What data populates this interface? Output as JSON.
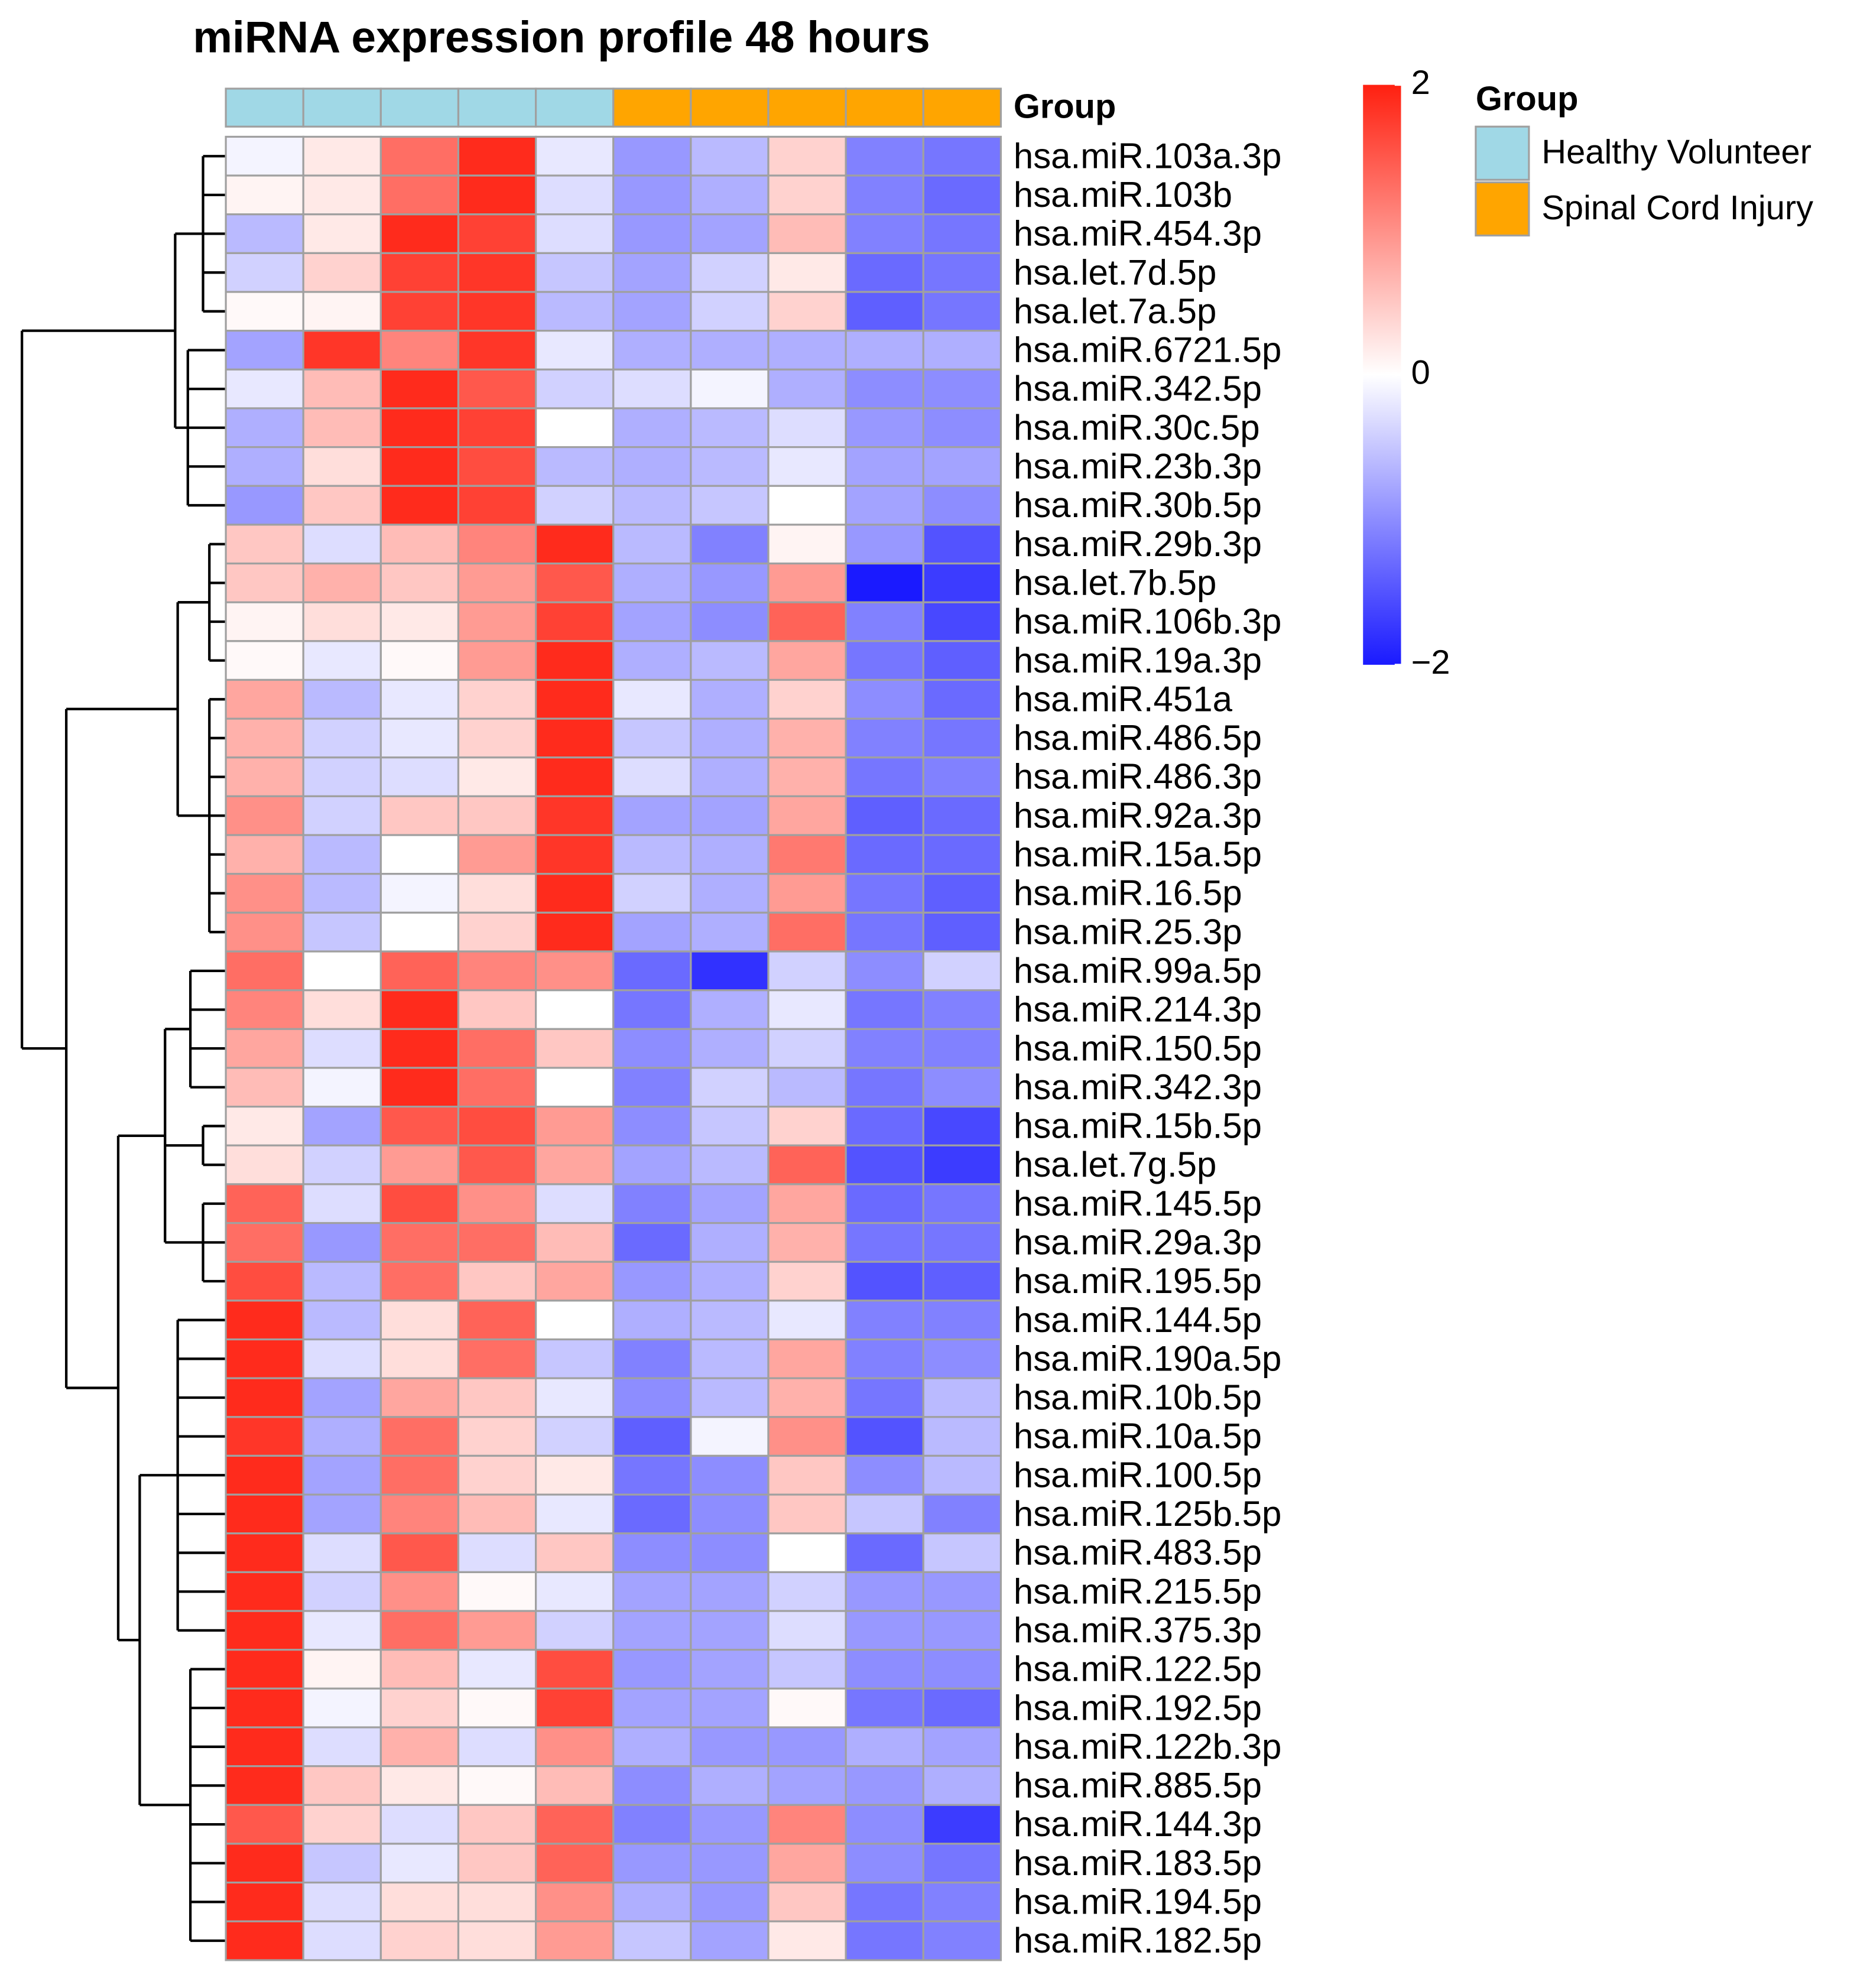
{
  "chart_data": {
    "type": "heatmap",
    "title": "miRNA expression profile 48 hours",
    "rows": [
      "hsa.miR.103a.3p",
      "hsa.miR.103b",
      "hsa.miR.454.3p",
      "hsa.let.7d.5p",
      "hsa.let.7a.5p",
      "hsa.miR.6721.5p",
      "hsa.miR.342.5p",
      "hsa.miR.30c.5p",
      "hsa.miR.23b.3p",
      "hsa.miR.30b.5p",
      "hsa.miR.29b.3p",
      "hsa.let.7b.5p",
      "hsa.miR.106b.3p",
      "hsa.miR.19a.3p",
      "hsa.miR.451a",
      "hsa.miR.486.5p",
      "hsa.miR.486.3p",
      "hsa.miR.92a.3p",
      "hsa.miR.15a.5p",
      "hsa.miR.16.5p",
      "hsa.miR.25.3p",
      "hsa.miR.99a.5p",
      "hsa.miR.214.3p",
      "hsa.miR.150.5p",
      "hsa.miR.342.3p",
      "hsa.miR.15b.5p",
      "hsa.let.7g.5p",
      "hsa.miR.145.5p",
      "hsa.miR.29a.3p",
      "hsa.miR.195.5p",
      "hsa.miR.144.5p",
      "hsa.miR.190a.5p",
      "hsa.miR.10b.5p",
      "hsa.miR.10a.5p",
      "hsa.miR.100.5p",
      "hsa.miR.125b.5p",
      "hsa.miR.483.5p",
      "hsa.miR.215.5p",
      "hsa.miR.375.3p",
      "hsa.miR.122.5p",
      "hsa.miR.192.5p",
      "hsa.miR.122b.3p",
      "hsa.miR.885.5p",
      "hsa.miR.144.3p",
      "hsa.miR.183.5p",
      "hsa.miR.194.5p",
      "hsa.miR.182.5p"
    ],
    "values": [
      [
        -0.1,
        0.2,
        1.3,
        1.9,
        -0.2,
        -0.9,
        -0.6,
        0.4,
        -1.1,
        -1.2
      ],
      [
        0.1,
        0.2,
        1.3,
        1.9,
        -0.3,
        -0.9,
        -0.7,
        0.4,
        -1.1,
        -1.3
      ],
      [
        -0.6,
        0.2,
        1.9,
        1.7,
        -0.3,
        -0.9,
        -0.8,
        0.6,
        -1.1,
        -1.2
      ],
      [
        -0.4,
        0.4,
        1.7,
        1.8,
        -0.5,
        -0.8,
        -0.4,
        0.2,
        -1.3,
        -1.2
      ],
      [
        0.05,
        0.1,
        1.7,
        1.8,
        -0.6,
        -0.8,
        -0.4,
        0.4,
        -1.4,
        -1.2
      ],
      [
        -0.8,
        1.8,
        1.1,
        1.8,
        -0.2,
        -0.7,
        -0.7,
        -0.7,
        -0.7,
        -0.7
      ],
      [
        -0.2,
        0.6,
        1.9,
        1.5,
        -0.4,
        -0.3,
        -0.1,
        -0.7,
        -1.0,
        -1.0
      ],
      [
        -0.7,
        0.6,
        1.9,
        1.7,
        0.0,
        -0.7,
        -0.6,
        -0.3,
        -0.9,
        -1.0
      ],
      [
        -0.7,
        0.3,
        1.9,
        1.6,
        -0.6,
        -0.7,
        -0.6,
        -0.2,
        -0.8,
        -0.8
      ],
      [
        -0.9,
        0.5,
        1.9,
        1.7,
        -0.4,
        -0.6,
        -0.5,
        0.0,
        -0.8,
        -1.0
      ],
      [
        0.5,
        -0.3,
        0.6,
        1.1,
        1.9,
        -0.6,
        -1.1,
        0.1,
        -0.9,
        -1.5
      ],
      [
        0.5,
        0.7,
        0.5,
        0.9,
        1.5,
        -0.7,
        -0.9,
        0.9,
        -2.0,
        -1.7
      ],
      [
        0.1,
        0.3,
        0.2,
        0.9,
        1.7,
        -0.8,
        -1.0,
        1.4,
        -1.1,
        -1.6
      ],
      [
        0.05,
        -0.2,
        0.05,
        0.9,
        1.9,
        -0.7,
        -0.6,
        0.8,
        -1.2,
        -1.4
      ],
      [
        0.8,
        -0.6,
        -0.2,
        0.4,
        1.9,
        -0.2,
        -0.7,
        0.4,
        -1.0,
        -1.3
      ],
      [
        0.7,
        -0.4,
        -0.2,
        0.4,
        1.9,
        -0.5,
        -0.7,
        0.7,
        -1.1,
        -1.2
      ],
      [
        0.7,
        -0.4,
        -0.3,
        0.2,
        1.9,
        -0.3,
        -0.7,
        0.7,
        -1.2,
        -1.1
      ],
      [
        1.0,
        -0.4,
        0.5,
        0.5,
        1.8,
        -0.8,
        -0.8,
        0.8,
        -1.4,
        -1.3
      ],
      [
        0.7,
        -0.6,
        0.0,
        0.9,
        1.8,
        -0.6,
        -0.7,
        1.2,
        -1.3,
        -1.3
      ],
      [
        1.0,
        -0.6,
        -0.1,
        0.3,
        1.9,
        -0.4,
        -0.7,
        0.9,
        -1.2,
        -1.4
      ],
      [
        1.0,
        -0.5,
        0.0,
        0.4,
        1.9,
        -0.8,
        -0.7,
        1.3,
        -1.2,
        -1.4
      ],
      [
        1.3,
        0.0,
        1.4,
        1.1,
        1.0,
        -1.3,
        -1.8,
        -0.4,
        -1.0,
        -0.4
      ],
      [
        1.1,
        0.3,
        1.9,
        0.5,
        0.0,
        -1.2,
        -0.7,
        -0.2,
        -1.2,
        -1.1
      ],
      [
        0.8,
        -0.3,
        1.9,
        1.3,
        0.5,
        -1.0,
        -0.7,
        -0.4,
        -1.1,
        -1.1
      ],
      [
        0.6,
        -0.1,
        1.9,
        1.3,
        0.0,
        -1.1,
        -0.4,
        -0.6,
        -1.2,
        -1.0
      ],
      [
        0.2,
        -0.8,
        1.5,
        1.6,
        0.9,
        -1.0,
        -0.5,
        0.4,
        -1.3,
        -1.6
      ],
      [
        0.3,
        -0.4,
        0.9,
        1.5,
        0.8,
        -0.8,
        -0.6,
        1.4,
        -1.5,
        -1.7
      ],
      [
        1.4,
        -0.3,
        1.6,
        1.0,
        -0.3,
        -1.1,
        -0.8,
        0.8,
        -1.3,
        -1.2
      ],
      [
        1.3,
        -0.9,
        1.3,
        1.3,
        0.6,
        -1.3,
        -0.7,
        0.7,
        -1.2,
        -1.2
      ],
      [
        1.6,
        -0.6,
        1.3,
        0.5,
        0.8,
        -0.9,
        -0.7,
        0.4,
        -1.5,
        -1.4
      ],
      [
        1.9,
        -0.6,
        0.3,
        1.4,
        0.0,
        -0.7,
        -0.6,
        -0.2,
        -1.1,
        -1.1
      ],
      [
        1.9,
        -0.3,
        0.3,
        1.3,
        -0.5,
        -1.1,
        -0.6,
        0.8,
        -1.1,
        -1.0
      ],
      [
        1.9,
        -0.8,
        0.8,
        0.5,
        -0.2,
        -1.0,
        -0.6,
        0.7,
        -1.2,
        -0.6
      ],
      [
        1.8,
        -0.7,
        1.3,
        0.4,
        -0.4,
        -1.4,
        -0.1,
        1.0,
        -1.5,
        -0.6
      ],
      [
        1.9,
        -0.8,
        1.3,
        0.4,
        0.2,
        -1.2,
        -1.0,
        0.5,
        -1.0,
        -0.6
      ],
      [
        1.9,
        -0.8,
        1.1,
        0.6,
        -0.2,
        -1.3,
        -1.0,
        0.5,
        -0.5,
        -1.1
      ],
      [
        1.9,
        -0.3,
        1.5,
        -0.3,
        0.5,
        -1.0,
        -1.0,
        0.0,
        -1.3,
        -0.5
      ],
      [
        1.9,
        -0.4,
        1.0,
        0.05,
        -0.2,
        -0.8,
        -0.8,
        -0.4,
        -0.9,
        -0.9
      ],
      [
        1.9,
        -0.2,
        1.3,
        0.9,
        -0.4,
        -0.8,
        -0.8,
        -0.3,
        -0.9,
        -0.9
      ],
      [
        1.9,
        0.1,
        0.6,
        -0.2,
        1.6,
        -0.9,
        -0.8,
        -0.5,
        -1.0,
        -1.0
      ],
      [
        1.9,
        -0.1,
        0.4,
        0.05,
        1.7,
        -0.8,
        -0.8,
        0.05,
        -1.2,
        -1.3
      ],
      [
        1.9,
        -0.3,
        0.7,
        -0.3,
        1.0,
        -0.7,
        -0.9,
        -0.9,
        -0.7,
        -0.8
      ],
      [
        1.9,
        0.5,
        0.2,
        0.05,
        0.6,
        -1.0,
        -0.7,
        -0.8,
        -0.9,
        -0.7
      ],
      [
        1.5,
        0.4,
        -0.3,
        0.5,
        1.4,
        -1.1,
        -0.9,
        1.1,
        -1.0,
        -1.7
      ],
      [
        1.9,
        -0.5,
        -0.2,
        0.5,
        1.4,
        -0.9,
        -0.9,
        0.8,
        -1.0,
        -1.2
      ],
      [
        1.9,
        -0.3,
        0.3,
        0.3,
        1.0,
        -0.7,
        -0.9,
        0.5,
        -1.2,
        -1.1
      ],
      [
        1.9,
        -0.3,
        0.4,
        0.3,
        0.9,
        -0.5,
        -0.8,
        0.2,
        -1.2,
        -1.1
      ]
    ],
    "colorscale": [
      "#1a1aff",
      "#ffffff",
      "#ff2010"
    ],
    "zlim": [
      -2,
      2
    ],
    "zticks": [
      2,
      0,
      {
        "value": -2,
        "label": "−2"
      }
    ],
    "annotation_title": "Group",
    "groups": [
      {
        "name": "Healthy Volunteer",
        "color": "#a0d8e6"
      },
      {
        "name": "Spinal Cord Injury",
        "color": "#ffa500"
      }
    ],
    "column_groups": [
      "Healthy Volunteer",
      "Healthy Volunteer",
      "Healthy Volunteer",
      "Healthy Volunteer",
      "Healthy Volunteer",
      "Spinal Cord Injury",
      "Spinal Cord Injury",
      "Spinal Cord Injury",
      "Spinal Cord Injury",
      "Spinal Cord Injury"
    ]
  }
}
